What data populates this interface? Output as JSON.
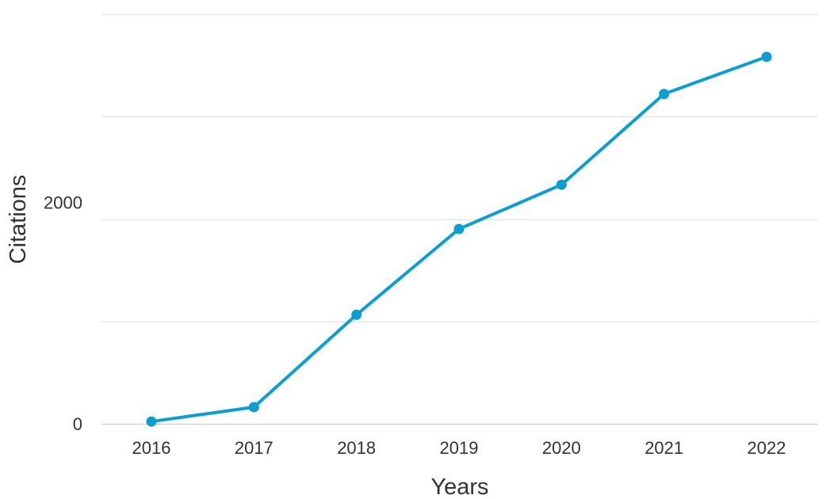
{
  "chart_data": {
    "type": "line",
    "title": "",
    "xlabel": "Years",
    "ylabel": "Citations",
    "x": [
      "2016",
      "2017",
      "2018",
      "2019",
      "2020",
      "2021",
      "2022"
    ],
    "y": [
      20,
      150,
      985,
      1760,
      2160,
      2980,
      3315
    ],
    "ylim": [
      0,
      3700
    ],
    "yticks": [
      0,
      2000
    ],
    "gridline_values": [
      0,
      925,
      1850,
      2775,
      3700
    ],
    "grid": true,
    "legend": "none",
    "color": "#0a9fd0"
  }
}
